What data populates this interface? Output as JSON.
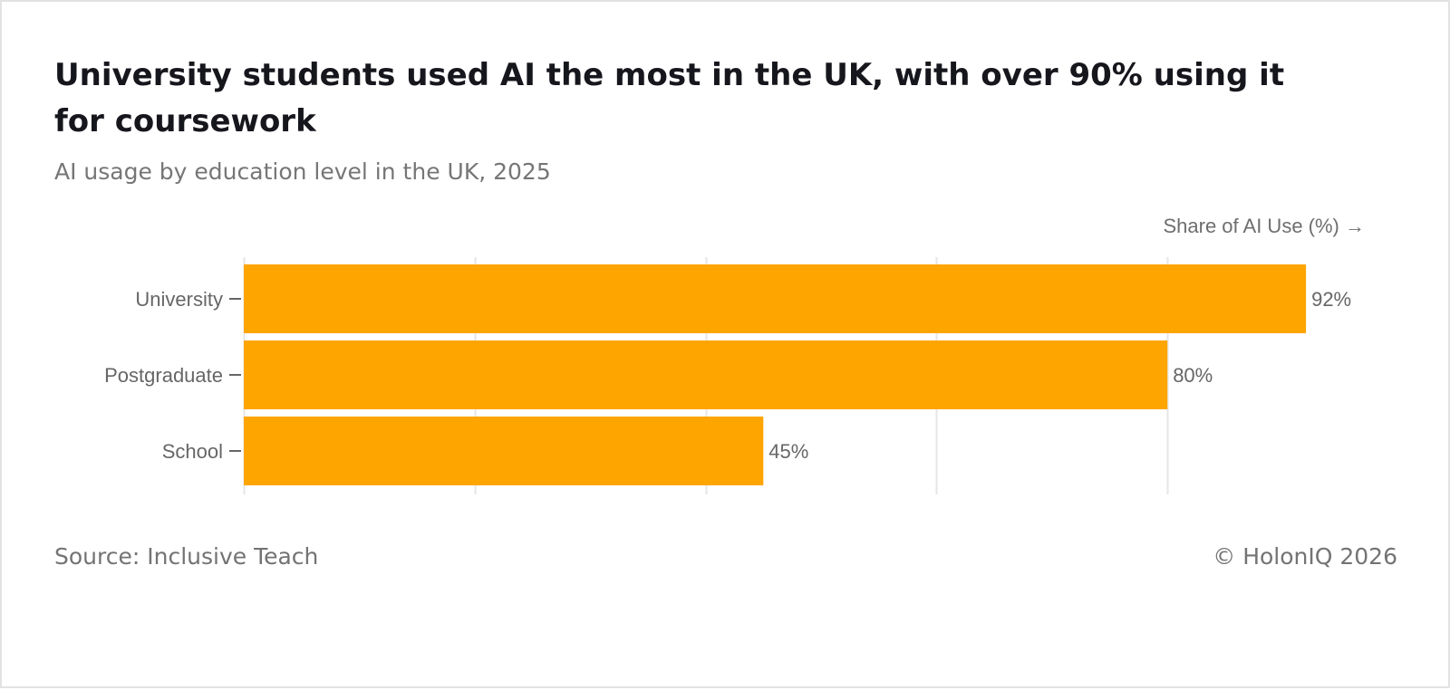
{
  "header": {
    "title": "University students used AI the most in the UK, with over 90% using it for coursework",
    "subtitle": "AI usage by education level in the UK, 2025"
  },
  "footer": {
    "source": "Source: Inclusive Teach",
    "copyright": "© HolonIQ 2026"
  },
  "colors": {
    "bar": "#FFA500",
    "grid": "#E6E6E6",
    "text_muted": "#6E6E6E"
  },
  "chart_data": {
    "type": "bar",
    "orientation": "horizontal",
    "title": "University students used AI the most in the UK, with over 90% using it for coursework",
    "subtitle": "AI usage by education level in the UK, 2025",
    "categories": [
      "University",
      "Postgraduate",
      "School"
    ],
    "values": [
      92,
      80,
      45
    ],
    "value_labels": [
      "92%",
      "80%",
      "45%"
    ],
    "xlabel": "Share of AI Use (%) →",
    "ylabel": "",
    "xlim": [
      0,
      100
    ],
    "gridline_values": [
      0,
      20,
      40,
      60,
      80
    ],
    "tick_labels_shown": false,
    "grid": true,
    "legend": "none"
  }
}
